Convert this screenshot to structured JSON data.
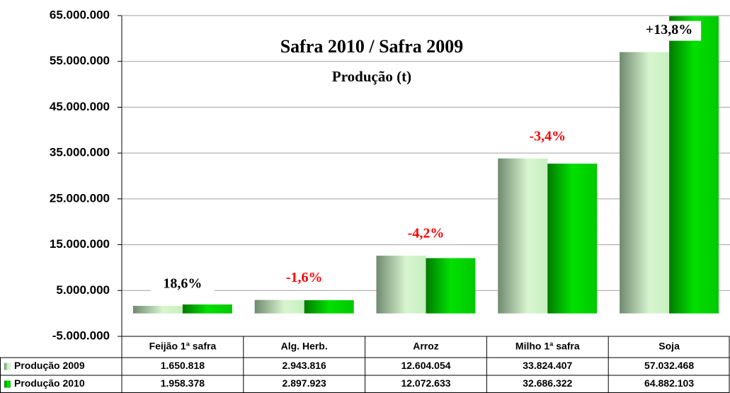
{
  "chart_data": {
    "type": "bar",
    "title": "Safra 2010 / Safra 2009",
    "subtitle": "Produção (t)",
    "categories": [
      "Feijão 1ª safra",
      "Alg. Herb.",
      "Arroz",
      "Milho 1ª safra",
      "Soja"
    ],
    "series": [
      {
        "name": "Produção 2009",
        "color": "#c8f0c0",
        "values": [
          1650818,
          2943816,
          12604054,
          33824407,
          57032468
        ],
        "value_labels": [
          "1.650.818",
          "2.943.816",
          "12.604.054",
          "33.824.407",
          "57.032.468"
        ]
      },
      {
        "name": "Produção 2010",
        "color": "#00cc00",
        "values": [
          1958378,
          2897923,
          12072633,
          32686322,
          64882103
        ],
        "value_labels": [
          "1.958.378",
          "2.897.923",
          "12.072.633",
          "32.686.322",
          "64.882.103"
        ]
      }
    ],
    "annotations": [
      {
        "text": "18,6%",
        "color": "#000000"
      },
      {
        "text": "-1,6%",
        "color": "#ff0000"
      },
      {
        "text": "-4,2%",
        "color": "#ff0000"
      },
      {
        "text": "-3,4%",
        "color": "#ff0000"
      },
      {
        "text": "+13,8%",
        "color": "#000000"
      }
    ],
    "ylim": [
      -5000000,
      65000000
    ],
    "yticks": [
      {
        "value": -5000000,
        "label": "-5.000.000"
      },
      {
        "value": 5000000,
        "label": "5.000.000"
      },
      {
        "value": 15000000,
        "label": "15.000.000"
      },
      {
        "value": 25000000,
        "label": "25.000.000"
      },
      {
        "value": 35000000,
        "label": "35.000.000"
      },
      {
        "value": 45000000,
        "label": "45.000.000"
      },
      {
        "value": 55000000,
        "label": "55.000.000"
      },
      {
        "value": 65000000,
        "label": "65.000.000"
      }
    ],
    "grid": true
  }
}
